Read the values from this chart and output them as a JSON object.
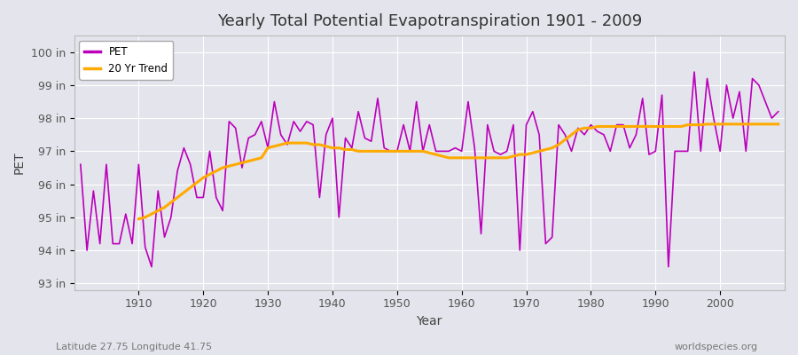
{
  "title": "Yearly Total Potential Evapotranspiration 1901 - 2009",
  "xlabel": "Year",
  "ylabel": "PET",
  "subtitle_left": "Latitude 27.75 Longitude 41.75",
  "subtitle_right": "worldspecies.org",
  "ylim": [
    92.8,
    100.5
  ],
  "xlim": [
    1900,
    2010
  ],
  "yticks": [
    93,
    94,
    95,
    96,
    97,
    98,
    99,
    100
  ],
  "ytick_labels": [
    "93 in",
    "94 in",
    "95 in",
    "96 in",
    "97 in",
    "98 in",
    "99 in",
    "100 in"
  ],
  "xticks": [
    1910,
    1920,
    1930,
    1940,
    1950,
    1960,
    1970,
    1980,
    1990,
    2000
  ],
  "pet_color": "#bb00bb",
  "trend_color": "#ffaa00",
  "background_color": "#e4e4ec",
  "plot_background": "#e4e4ec",
  "grid_color": "#ffffff",
  "years": [
    1901,
    1902,
    1903,
    1904,
    1905,
    1906,
    1907,
    1908,
    1909,
    1910,
    1911,
    1912,
    1913,
    1914,
    1915,
    1916,
    1917,
    1918,
    1919,
    1920,
    1921,
    1922,
    1923,
    1924,
    1925,
    1926,
    1927,
    1928,
    1929,
    1930,
    1931,
    1932,
    1933,
    1934,
    1935,
    1936,
    1937,
    1938,
    1939,
    1940,
    1941,
    1942,
    1943,
    1944,
    1945,
    1946,
    1947,
    1948,
    1949,
    1950,
    1951,
    1952,
    1953,
    1954,
    1955,
    1956,
    1957,
    1958,
    1959,
    1960,
    1961,
    1962,
    1963,
    1964,
    1965,
    1966,
    1967,
    1968,
    1969,
    1970,
    1971,
    1972,
    1973,
    1974,
    1975,
    1976,
    1977,
    1978,
    1979,
    1980,
    1981,
    1982,
    1983,
    1984,
    1985,
    1986,
    1987,
    1988,
    1989,
    1990,
    1991,
    1992,
    1993,
    1994,
    1995,
    1996,
    1997,
    1998,
    1999,
    2000,
    2001,
    2002,
    2003,
    2004,
    2005,
    2006,
    2007,
    2008,
    2009
  ],
  "pet_values": [
    96.6,
    94.0,
    95.8,
    94.2,
    96.6,
    94.2,
    94.2,
    95.1,
    94.2,
    96.6,
    94.1,
    93.5,
    95.8,
    94.4,
    95.0,
    96.4,
    97.1,
    96.6,
    95.6,
    95.6,
    97.0,
    95.6,
    95.2,
    97.9,
    97.7,
    96.5,
    97.4,
    97.5,
    97.9,
    97.1,
    98.5,
    97.5,
    97.2,
    97.9,
    97.6,
    97.9,
    97.8,
    95.6,
    97.5,
    98.0,
    95.0,
    97.4,
    97.1,
    98.2,
    97.4,
    97.3,
    98.6,
    97.1,
    97.0,
    97.0,
    97.8,
    97.0,
    98.5,
    97.0,
    97.8,
    97.0,
    97.0,
    97.0,
    97.1,
    97.0,
    98.5,
    97.1,
    94.5,
    97.8,
    97.0,
    96.9,
    97.0,
    97.8,
    94.0,
    97.8,
    98.2,
    97.5,
    94.2,
    94.4,
    97.8,
    97.5,
    97.0,
    97.7,
    97.5,
    97.8,
    97.6,
    97.5,
    97.0,
    97.8,
    97.8,
    97.1,
    97.5,
    98.6,
    96.9,
    97.0,
    98.7,
    93.5,
    97.0,
    97.0,
    97.0,
    99.4,
    97.0,
    99.2,
    98.0,
    97.0,
    99.0,
    98.0,
    98.8,
    97.0,
    99.2,
    99.0,
    98.5,
    98.0,
    98.2
  ],
  "trend_start_year": 1910,
  "trend_values_from_1910": [
    94.95,
    95.0,
    95.1,
    95.2,
    95.3,
    95.45,
    95.6,
    95.75,
    95.9,
    96.05,
    96.2,
    96.3,
    96.4,
    96.5,
    96.55,
    96.6,
    96.65,
    96.7,
    96.75,
    96.8,
    97.1,
    97.15,
    97.2,
    97.25,
    97.25,
    97.25,
    97.25,
    97.2,
    97.2,
    97.15,
    97.1,
    97.1,
    97.05,
    97.05,
    97.0,
    97.0,
    97.0,
    97.0,
    97.0,
    97.0,
    97.0,
    97.0,
    97.0,
    97.0,
    97.0,
    96.95,
    96.9,
    96.85,
    96.8,
    96.8,
    96.8,
    96.8,
    96.8,
    96.8,
    96.8,
    96.8,
    96.8,
    96.8,
    96.85,
    96.9,
    96.9,
    96.95,
    97.0,
    97.05,
    97.1,
    97.2,
    97.35,
    97.5,
    97.65,
    97.7,
    97.7,
    97.75,
    97.75,
    97.75,
    97.75,
    97.75,
    97.75,
    97.75,
    97.75,
    97.75,
    97.75,
    97.75,
    97.75,
    97.75,
    97.75,
    97.8,
    97.8,
    97.8,
    97.82,
    97.82,
    97.82,
    97.82,
    97.82,
    97.82,
    97.82,
    97.82,
    97.82,
    97.82,
    97.82,
    97.82
  ]
}
